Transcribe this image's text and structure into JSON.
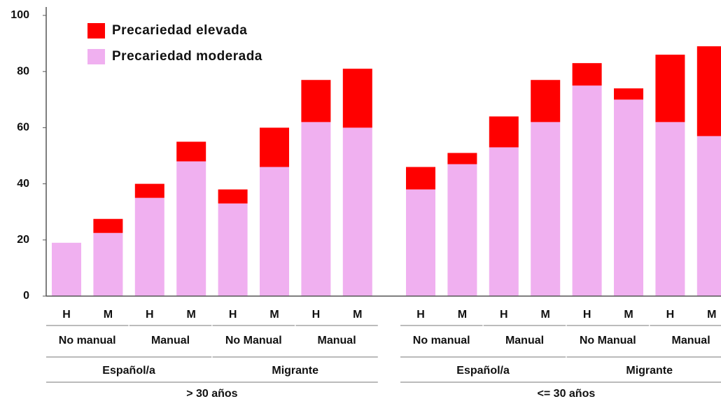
{
  "chart_data": {
    "type": "stacked_bar",
    "categories": [
      "H",
      "M",
      "H",
      "M",
      "H",
      "M",
      "H",
      "M",
      "H",
      "M",
      "H",
      "M",
      "H",
      "M",
      "H",
      "M"
    ],
    "level2": [
      "No manual",
      "Manual",
      "No Manual",
      "Manual",
      "No manual",
      "Manual",
      "No Manual",
      "Manual"
    ],
    "level3": [
      "Español/a",
      "Migrante",
      "Español/a",
      "Migrante"
    ],
    "level4": [
      "> 30 años",
      "<= 30 años"
    ],
    "series": [
      {
        "name": "Precariedad moderada",
        "color": "#f0b0f0",
        "values": [
          19,
          22.5,
          35,
          48,
          33,
          46,
          62,
          60,
          38,
          47,
          53,
          62,
          75,
          70,
          62,
          57
        ]
      },
      {
        "name": "Precariedad elevada",
        "color": "#ff0000",
        "values": [
          0,
          5,
          5,
          7,
          5,
          14,
          15,
          21,
          8,
          4,
          11,
          15,
          8,
          4,
          24,
          32
        ]
      }
    ],
    "ylim": [
      0,
      100
    ],
    "yticks": [
      0,
      20,
      40,
      60,
      80,
      100
    ]
  }
}
